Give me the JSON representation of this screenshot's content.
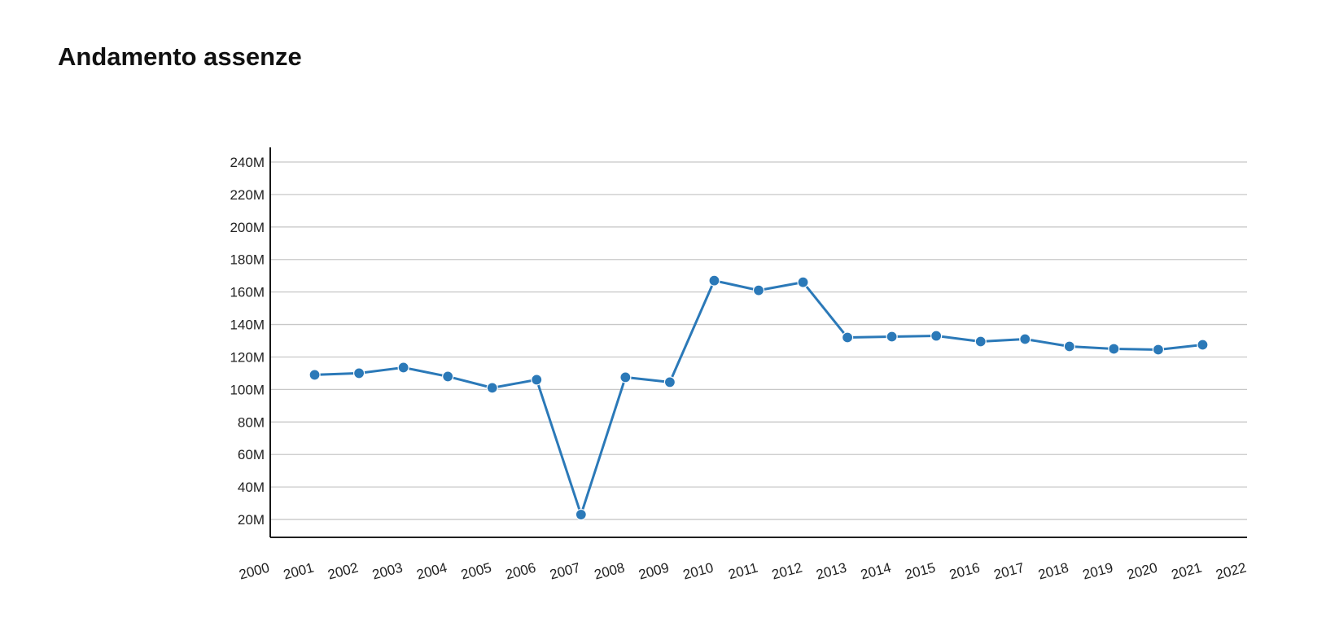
{
  "page": {
    "title": "Andamento assenze"
  },
  "colors": {
    "series": "#2b79b8",
    "grid": "#c8c8c8",
    "axis": "#000000"
  },
  "chart_data": {
    "type": "line",
    "title": "Andamento assenze",
    "xlabel": "",
    "ylabel": "",
    "x_tick_labels": [
      "2000",
      "2001",
      "2002",
      "2003",
      "2004",
      "2005",
      "2006",
      "2007",
      "2008",
      "2009",
      "2010",
      "2011",
      "2012",
      "2013",
      "2014",
      "2015",
      "2016",
      "2017",
      "2018",
      "2019",
      "2020",
      "2021",
      "2022"
    ],
    "y_tick_labels": [
      "20M",
      "40M",
      "60M",
      "80M",
      "100M",
      "120M",
      "140M",
      "160M",
      "180M",
      "200M",
      "220M",
      "240M"
    ],
    "y_tick_values": [
      20000000,
      40000000,
      60000000,
      80000000,
      100000000,
      120000000,
      140000000,
      160000000,
      180000000,
      200000000,
      220000000,
      240000000
    ],
    "xlim": [
      2000,
      2022
    ],
    "ylim": [
      9000000,
      249000000
    ],
    "grid": "horizontal",
    "series": [
      {
        "x": [
          2001,
          2002,
          2003,
          2004,
          2005,
          2006,
          2007,
          2008,
          2009,
          2010,
          2011,
          2012,
          2013,
          2014,
          2015,
          2016,
          2017,
          2018,
          2019,
          2020,
          2021
        ],
        "values": [
          109000000,
          110000000,
          113500000,
          108000000,
          101000000,
          106000000,
          23000000,
          107500000,
          104500000,
          167000000,
          161000000,
          166000000,
          132000000,
          132500000,
          133000000,
          129500000,
          131000000,
          126500000,
          125000000,
          124500000,
          127500000
        ]
      }
    ]
  }
}
